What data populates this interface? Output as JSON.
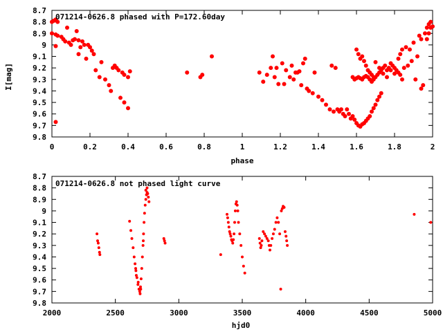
{
  "colors": {
    "data": "#ff0000",
    "axis": "#000000",
    "background": "#ffffff"
  },
  "chart_data": [
    {
      "type": "scatter",
      "title": "071214-0626.8 phased with P=172.60day",
      "xlabel": "phase",
      "ylabel": "I[mag]",
      "xlim": [
        0,
        2
      ],
      "ylim": [
        9.8,
        8.7
      ],
      "y_inverted": true,
      "grid": false,
      "legend": "none",
      "marker": "filled-circle",
      "xticks": [
        "0",
        "0.2",
        "0.4",
        "0.6",
        "0.8",
        "1",
        "1.2",
        "1.4",
        "1.6",
        "1.8",
        "2"
      ],
      "xtick_values": [
        0,
        0.2,
        0.4,
        0.6,
        0.8,
        1,
        1.2,
        1.4,
        1.6,
        1.8,
        2
      ],
      "yticks": [
        "8.7",
        "8.8",
        "8.9",
        "9",
        "9.1",
        "9.2",
        "9.3",
        "9.4",
        "9.5",
        "9.6",
        "9.7",
        "9.8"
      ],
      "ytick_values": [
        8.7,
        8.8,
        8.9,
        9.0,
        9.1,
        9.2,
        9.3,
        9.4,
        9.5,
        9.6,
        9.7,
        9.8
      ],
      "points": [
        [
          0.0,
          8.8
        ],
        [
          0.01,
          8.79
        ],
        [
          0.02,
          8.78
        ],
        [
          0.03,
          8.8
        ],
        [
          0.0,
          8.9
        ],
        [
          0.02,
          8.91
        ],
        [
          0.03,
          8.92
        ],
        [
          0.05,
          8.93
        ],
        [
          0.02,
          9.01
        ],
        [
          0.02,
          9.67
        ],
        [
          0.06,
          8.95
        ],
        [
          0.07,
          8.97
        ],
        [
          0.08,
          8.85
        ],
        [
          0.09,
          8.98
        ],
        [
          0.1,
          9.0
        ],
        [
          0.11,
          8.96
        ],
        [
          0.12,
          8.95
        ],
        [
          0.13,
          8.88
        ],
        [
          0.14,
          8.96
        ],
        [
          0.14,
          9.08
        ],
        [
          0.15,
          9.02
        ],
        [
          0.16,
          8.97
        ],
        [
          0.17,
          9.0
        ],
        [
          0.18,
          9.12
        ],
        [
          0.19,
          9.0
        ],
        [
          0.2,
          9.02
        ],
        [
          0.21,
          9.05
        ],
        [
          0.22,
          9.08
        ],
        [
          0.23,
          9.22
        ],
        [
          0.25,
          9.28
        ],
        [
          0.26,
          9.15
        ],
        [
          0.28,
          9.3
        ],
        [
          0.3,
          9.35
        ],
        [
          0.31,
          9.4
        ],
        [
          0.32,
          9.2
        ],
        [
          0.33,
          9.18
        ],
        [
          0.34,
          9.2
        ],
        [
          0.35,
          9.22
        ],
        [
          0.36,
          9.46
        ],
        [
          0.37,
          9.24
        ],
        [
          0.38,
          9.26
        ],
        [
          0.38,
          9.5
        ],
        [
          0.4,
          9.28
        ],
        [
          0.41,
          9.23
        ],
        [
          0.4,
          9.55
        ],
        [
          0.71,
          9.24
        ],
        [
          0.78,
          9.28
        ],
        [
          0.79,
          9.26
        ],
        [
          0.84,
          9.1
        ],
        [
          1.09,
          9.24
        ],
        [
          1.11,
          9.32
        ],
        [
          1.13,
          9.26
        ],
        [
          1.15,
          9.2
        ],
        [
          1.16,
          9.1
        ],
        [
          1.17,
          9.28
        ],
        [
          1.18,
          9.2
        ],
        [
          1.19,
          9.34
        ],
        [
          1.21,
          9.16
        ],
        [
          1.22,
          9.34
        ],
        [
          1.23,
          9.22
        ],
        [
          1.25,
          9.28
        ],
        [
          1.26,
          9.18
        ],
        [
          1.27,
          9.3
        ],
        [
          1.28,
          9.24
        ],
        [
          1.29,
          9.24
        ],
        [
          1.3,
          9.23
        ],
        [
          1.31,
          9.35
        ],
        [
          1.32,
          9.16
        ],
        [
          1.33,
          9.12
        ],
        [
          1.34,
          9.38
        ],
        [
          1.35,
          9.4
        ],
        [
          1.37,
          9.42
        ],
        [
          1.38,
          9.24
        ],
        [
          1.4,
          9.45
        ],
        [
          1.42,
          9.48
        ],
        [
          1.44,
          9.52
        ],
        [
          1.46,
          9.56
        ],
        [
          1.47,
          9.18
        ],
        [
          1.48,
          9.58
        ],
        [
          1.49,
          9.2
        ],
        [
          1.5,
          9.56
        ],
        [
          1.51,
          9.58
        ],
        [
          1.52,
          9.56
        ],
        [
          1.53,
          9.6
        ],
        [
          1.54,
          9.62
        ],
        [
          1.55,
          9.56
        ],
        [
          1.56,
          9.6
        ],
        [
          1.57,
          9.64
        ],
        [
          1.58,
          9.62
        ],
        [
          1.59,
          9.65
        ],
        [
          1.6,
          9.68
        ],
        [
          1.61,
          9.7
        ],
        [
          1.62,
          9.71
        ],
        [
          1.63,
          9.69
        ],
        [
          1.64,
          9.68
        ],
        [
          1.65,
          9.66
        ],
        [
          1.66,
          9.64
        ],
        [
          1.67,
          9.62
        ],
        [
          1.68,
          9.58
        ],
        [
          1.69,
          9.55
        ],
        [
          1.7,
          9.52
        ],
        [
          1.71,
          9.48
        ],
        [
          1.72,
          9.45
        ],
        [
          1.73,
          9.42
        ],
        [
          1.6,
          9.04
        ],
        [
          1.61,
          9.08
        ],
        [
          1.62,
          9.12
        ],
        [
          1.63,
          9.1
        ],
        [
          1.64,
          9.14
        ],
        [
          1.65,
          9.18
        ],
        [
          1.66,
          9.22
        ],
        [
          1.67,
          9.24
        ],
        [
          1.68,
          9.26
        ],
        [
          1.69,
          9.28
        ],
        [
          1.58,
          9.28
        ],
        [
          1.59,
          9.3
        ],
        [
          1.6,
          9.29
        ],
        [
          1.61,
          9.28
        ],
        [
          1.62,
          9.29
        ],
        [
          1.63,
          9.3
        ],
        [
          1.64,
          9.28
        ],
        [
          1.65,
          9.27
        ],
        [
          1.66,
          9.28
        ],
        [
          1.67,
          9.3
        ],
        [
          1.68,
          9.32
        ],
        [
          1.69,
          9.3
        ],
        [
          1.7,
          9.28
        ],
        [
          1.71,
          9.26
        ],
        [
          1.72,
          9.24
        ],
        [
          1.73,
          9.22
        ],
        [
          1.74,
          9.2
        ],
        [
          1.75,
          9.18
        ],
        [
          1.76,
          9.22
        ],
        [
          1.77,
          9.2
        ],
        [
          1.78,
          9.16
        ],
        [
          1.79,
          9.18
        ],
        [
          1.8,
          9.2
        ],
        [
          1.81,
          9.22
        ],
        [
          1.82,
          9.24
        ],
        [
          1.83,
          9.26
        ],
        [
          1.84,
          9.3
        ],
        [
          1.7,
          9.15
        ],
        [
          1.72,
          9.2
        ],
        [
          1.74,
          9.25
        ],
        [
          1.76,
          9.28
        ],
        [
          1.78,
          9.22
        ],
        [
          1.8,
          9.25
        ],
        [
          1.82,
          9.12
        ],
        [
          1.83,
          9.08
        ],
        [
          1.84,
          9.04
        ],
        [
          1.85,
          9.2
        ],
        [
          1.86,
          9.02
        ],
        [
          1.87,
          9.18
        ],
        [
          1.88,
          9.04
        ],
        [
          1.89,
          9.14
        ],
        [
          1.9,
          8.98
        ],
        [
          1.91,
          9.3
        ],
        [
          1.92,
          9.1
        ],
        [
          1.93,
          8.92
        ],
        [
          1.94,
          9.38
        ],
        [
          1.94,
          8.95
        ],
        [
          1.95,
          9.35
        ],
        [
          1.96,
          8.9
        ],
        [
          1.97,
          8.85
        ],
        [
          1.98,
          8.82
        ],
        [
          1.99,
          8.8
        ],
        [
          2.0,
          8.84
        ],
        [
          1.97,
          8.95
        ],
        [
          1.98,
          8.9
        ],
        [
          1.99,
          8.85
        ]
      ]
    },
    {
      "type": "scatter",
      "title": "071214-0626.8 not phased light curve",
      "xlabel": "hjd0",
      "ylabel": "",
      "xlim": [
        2000,
        5000
      ],
      "ylim": [
        9.8,
        8.7
      ],
      "y_inverted": true,
      "grid": false,
      "legend": "none",
      "marker": "filled-circle",
      "xticks": [
        "2000",
        "2500",
        "3000",
        "3500",
        "4000",
        "4500",
        "5000"
      ],
      "xtick_values": [
        2000,
        2500,
        3000,
        3500,
        4000,
        4500,
        5000
      ],
      "yticks": [
        "8.7",
        "8.8",
        "8.9",
        "9",
        "9.1",
        "9.2",
        "9.3",
        "9.4",
        "9.5",
        "9.6",
        "9.7",
        "9.8"
      ],
      "ytick_values": [
        8.7,
        8.8,
        8.9,
        9.0,
        9.1,
        9.2,
        9.3,
        9.4,
        9.5,
        9.6,
        9.7,
        9.8
      ],
      "points": [
        [
          2355,
          9.2
        ],
        [
          2360,
          9.26
        ],
        [
          2365,
          9.28
        ],
        [
          2370,
          9.32
        ],
        [
          2375,
          9.36
        ],
        [
          2378,
          9.38
        ],
        [
          2612,
          9.09
        ],
        [
          2622,
          9.17
        ],
        [
          2630,
          9.24
        ],
        [
          2640,
          9.32
        ],
        [
          2648,
          9.4
        ],
        [
          2655,
          9.46
        ],
        [
          2662,
          9.52
        ],
        [
          2670,
          9.58
        ],
        [
          2678,
          9.64
        ],
        [
          2686,
          9.68
        ],
        [
          2692,
          9.7
        ],
        [
          2698,
          9.66
        ],
        [
          2703,
          9.59
        ],
        [
          2708,
          9.5
        ],
        [
          2713,
          9.4
        ],
        [
          2718,
          9.3
        ],
        [
          2722,
          9.2
        ],
        [
          2726,
          9.1
        ],
        [
          2730,
          9.02
        ],
        [
          2735,
          8.95
        ],
        [
          2740,
          8.9
        ],
        [
          2745,
          8.86
        ],
        [
          2750,
          8.84
        ],
        [
          2755,
          8.85
        ],
        [
          2760,
          8.88
        ],
        [
          2765,
          8.92
        ],
        [
          2660,
          9.5
        ],
        [
          2665,
          9.56
        ],
        [
          2680,
          9.62
        ],
        [
          2695,
          9.72
        ],
        [
          2700,
          9.68
        ],
        [
          2720,
          9.26
        ],
        [
          2740,
          8.82
        ],
        [
          2750,
          8.8
        ],
        [
          2882,
          9.24
        ],
        [
          2887,
          9.26
        ],
        [
          2892,
          9.28
        ],
        [
          3330,
          9.38
        ],
        [
          3380,
          9.03
        ],
        [
          3385,
          9.06
        ],
        [
          3390,
          9.1
        ],
        [
          3395,
          9.14
        ],
        [
          3400,
          9.18
        ],
        [
          3405,
          9.2
        ],
        [
          3410,
          9.22
        ],
        [
          3415,
          9.25
        ],
        [
          3420,
          9.26
        ],
        [
          3425,
          9.28
        ],
        [
          3430,
          9.25
        ],
        [
          3435,
          9.2
        ],
        [
          3440,
          9.1
        ],
        [
          3445,
          9.0
        ],
        [
          3450,
          8.94
        ],
        [
          3455,
          8.92
        ],
        [
          3460,
          8.95
        ],
        [
          3465,
          9.0
        ],
        [
          3470,
          9.1
        ],
        [
          3480,
          9.2
        ],
        [
          3490,
          9.3
        ],
        [
          3500,
          9.4
        ],
        [
          3510,
          9.48
        ],
        [
          3520,
          9.54
        ],
        [
          3635,
          9.24
        ],
        [
          3640,
          9.28
        ],
        [
          3645,
          9.32
        ],
        [
          3650,
          9.3
        ],
        [
          3655,
          9.26
        ],
        [
          3665,
          9.18
        ],
        [
          3675,
          9.2
        ],
        [
          3685,
          9.22
        ],
        [
          3695,
          9.24
        ],
        [
          3705,
          9.26
        ],
        [
          3712,
          9.3
        ],
        [
          3718,
          9.34
        ],
        [
          3725,
          9.3
        ],
        [
          3735,
          9.24
        ],
        [
          3745,
          9.2
        ],
        [
          3755,
          9.16
        ],
        [
          3765,
          9.1
        ],
        [
          3775,
          9.06
        ],
        [
          3785,
          9.1
        ],
        [
          3795,
          9.2
        ],
        [
          3803,
          9.68
        ],
        [
          3808,
          9.0
        ],
        [
          3815,
          8.98
        ],
        [
          3822,
          8.96
        ],
        [
          3830,
          8.97
        ],
        [
          3838,
          9.18
        ],
        [
          3845,
          9.22
        ],
        [
          3850,
          9.26
        ],
        [
          3855,
          9.3
        ],
        [
          4855,
          9.03
        ],
        [
          4985,
          9.1
        ]
      ]
    }
  ]
}
